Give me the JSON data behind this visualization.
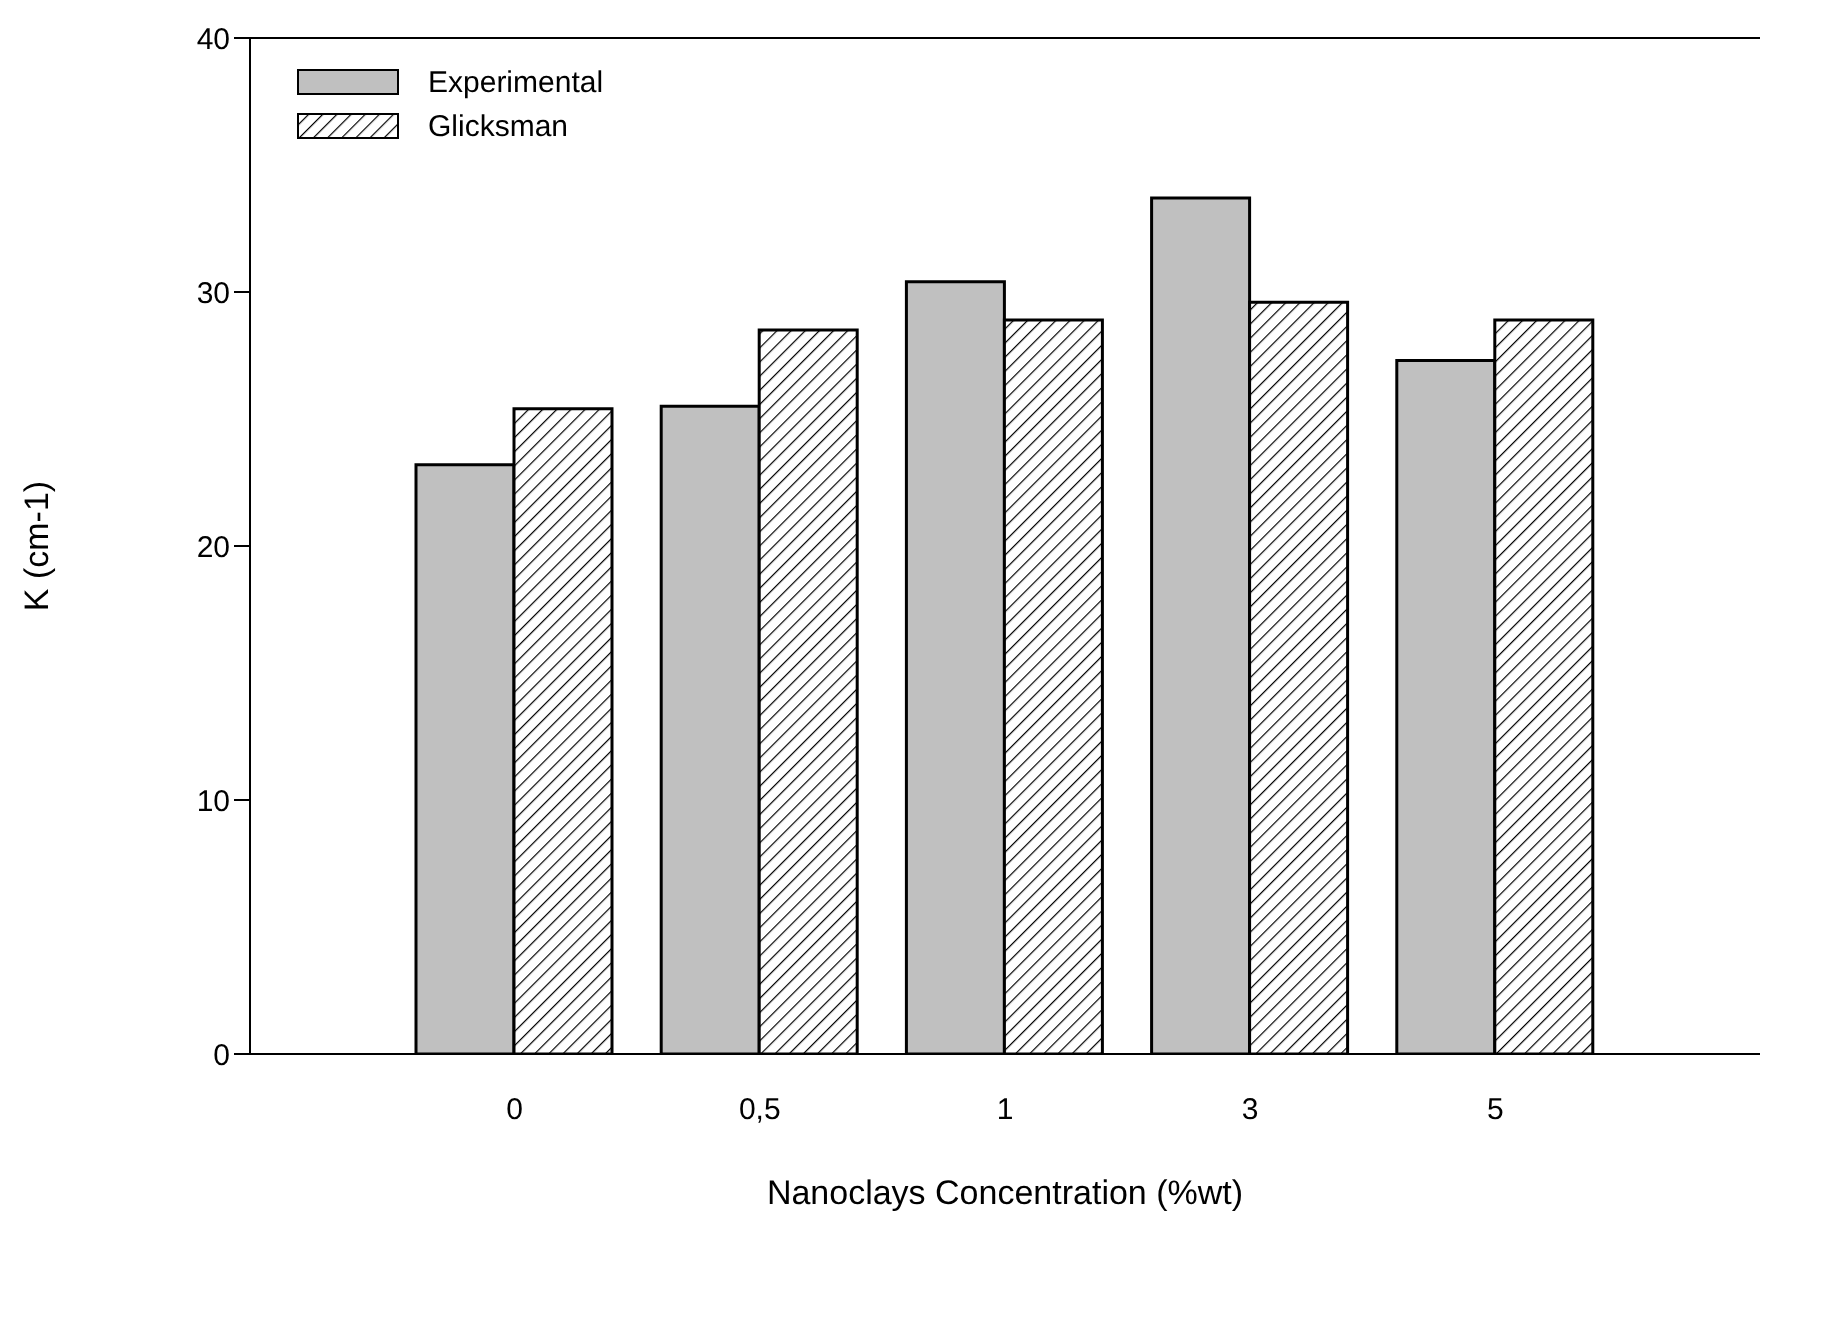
{
  "chart_data": {
    "type": "bar",
    "xlabel": "Nanoclays Concentration (%wt)",
    "ylabel": "K (cm-1)",
    "categories": [
      "0",
      "0,5",
      "1",
      "3",
      "5"
    ],
    "series": [
      {
        "name": "Experimental",
        "color": "#c0c0c0",
        "values": [
          23.2,
          25.5,
          30.4,
          33.7,
          27.3
        ]
      },
      {
        "name": "Glicksman",
        "color": "#000000",
        "values": [
          25.4,
          28.5,
          28.9,
          29.6,
          28.9
        ]
      }
    ],
    "ylim": [
      0,
      40
    ],
    "yticks": [
      0,
      10,
      20,
      30,
      40
    ],
    "legend": "top left"
  }
}
